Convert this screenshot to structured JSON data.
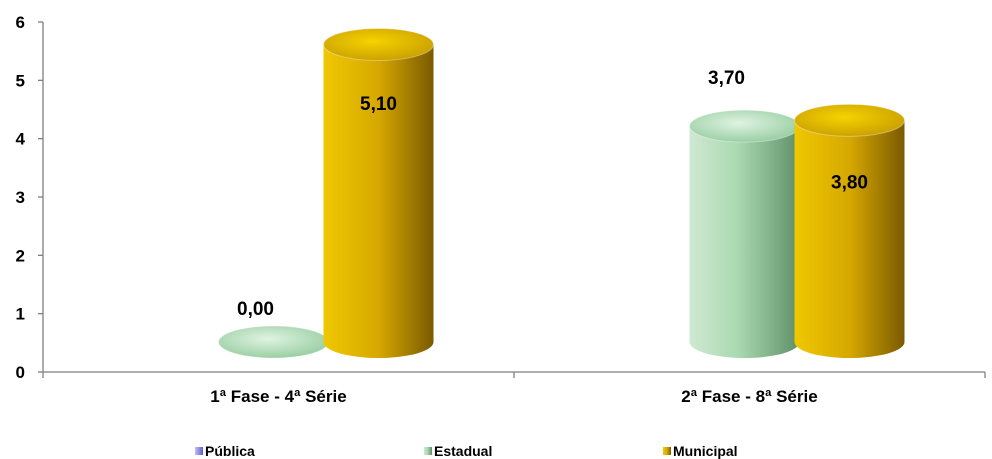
{
  "chart_data": {
    "type": "bar",
    "categories": [
      "1ª Fase - 4ª Série",
      "2ª Fase - 8ª Série"
    ],
    "series": [
      {
        "name": "Pública",
        "values": [
          null,
          null
        ],
        "labels": [
          "",
          ""
        ],
        "color": "#8B8BE0"
      },
      {
        "name": "Estadual",
        "values": [
          0.0,
          3.7
        ],
        "labels": [
          "0,00",
          "3,70"
        ],
        "color": "#8FC99A"
      },
      {
        "name": "Municipal",
        "values": [
          5.1,
          3.8
        ],
        "labels": [
          "5,10",
          "3,80"
        ],
        "color": "#C9A000"
      }
    ],
    "y_ticks": [
      "0",
      "1",
      "2",
      "3",
      "4",
      "5",
      "6"
    ],
    "ylim": [
      0,
      6
    ],
    "legend_position": "bottom",
    "grid": false
  }
}
